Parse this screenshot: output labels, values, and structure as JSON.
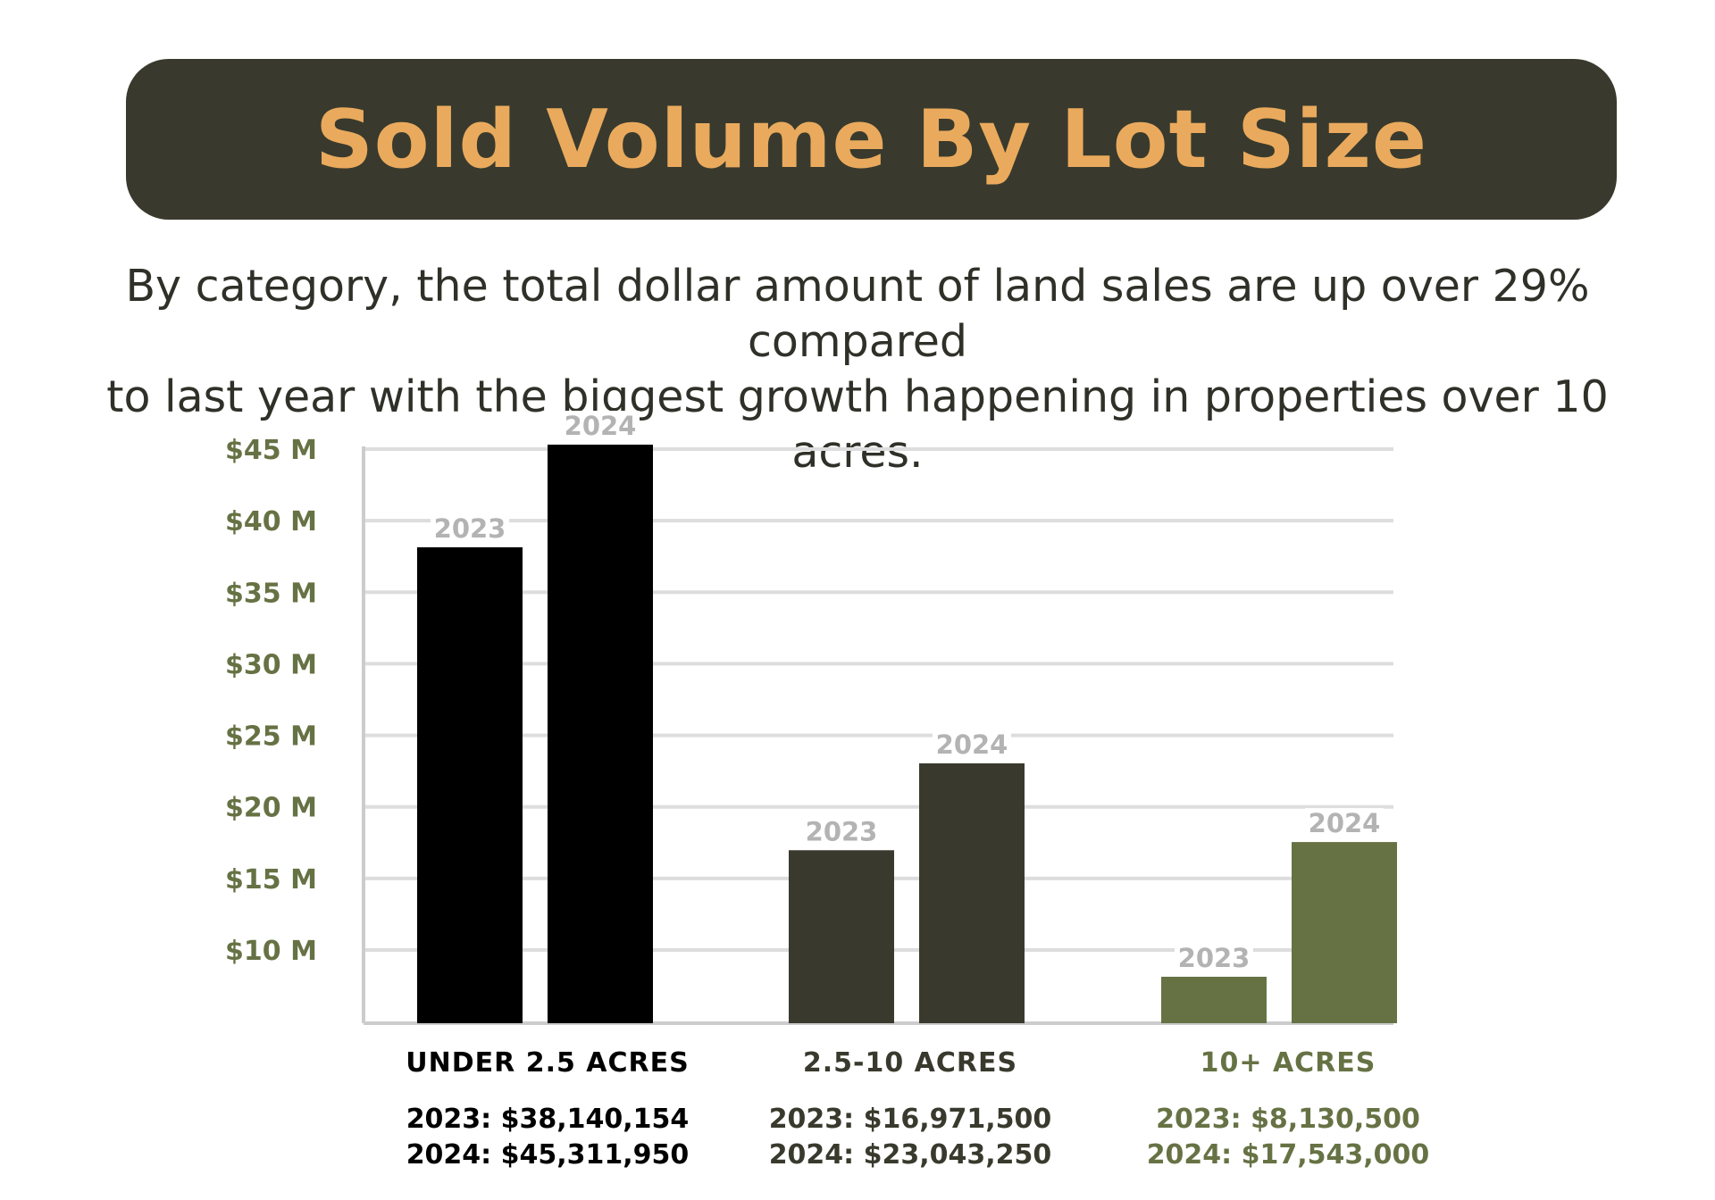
{
  "colors": {
    "banner_bg": "#393a2d",
    "banner_text": "#eaaa5d",
    "tick_text": "#667244",
    "year_label": "#b3b3b3",
    "grid": "#dddddd",
    "axis": "#cccccc",
    "under_2_5": "#000000",
    "mid": "#393a2d",
    "over_10": "#667244"
  },
  "header": {
    "title": "Sold Volume By Lot Size",
    "subtitle_line1": "By category, the total dollar amount of land sales are up over 29% compared",
    "subtitle_line2": "to last year with the biggest growth happening in properties over 10 acres."
  },
  "chart_data": {
    "type": "bar",
    "categories": [
      "UNDER 2.5 ACRES",
      "2.5-10 ACRES",
      "10+ ACRES"
    ],
    "series": [
      {
        "name": "2023",
        "values": [
          38140154,
          16971500,
          8130500
        ]
      },
      {
        "name": "2024",
        "values": [
          45311950,
          23043250,
          17543000
        ]
      }
    ],
    "y_ticks": [
      "$45 M",
      "$40 M",
      "$35 M",
      "$30 M",
      "$25 M",
      "$20 M",
      "$15 M",
      "$10 M"
    ],
    "y_tick_values": [
      45000000,
      40000000,
      35000000,
      30000000,
      25000000,
      20000000,
      15000000,
      10000000
    ],
    "grid": true,
    "legend": "none",
    "category_labels": [
      {
        "name": "UNDER 2.5 ACRES",
        "line_2023": "2023: $38,140,154",
        "line_2024": "2024: $45,311,950"
      },
      {
        "name": "2.5-10 ACRES",
        "line_2023": "2023: $16,971,500",
        "line_2024": "2024: $23,043,250"
      },
      {
        "name": "10+ ACRES",
        "line_2023": "2023: $8,130,500",
        "line_2024": "2024: $17,543,000"
      }
    ]
  }
}
